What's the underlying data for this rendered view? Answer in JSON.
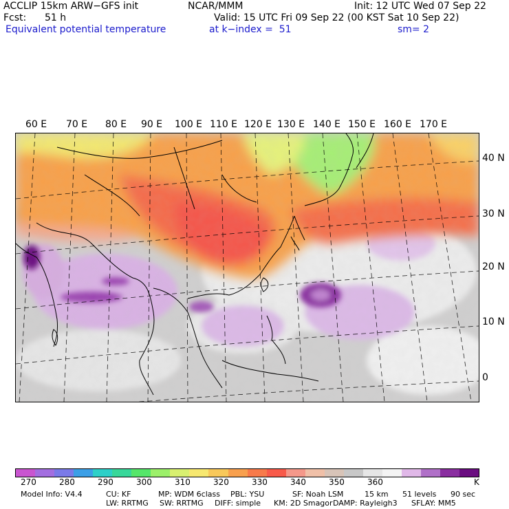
{
  "header": {
    "model": "ACCLIP 15km ARW−GFS init",
    "org": "NCAR/MMM",
    "init": "Init: 12 UTC Wed 07 Sep 22",
    "fcst_label": "Fcst:",
    "fcst_value": "51 h",
    "valid": "Valid: 15 UTC Fri 09 Sep 22 (00 KST Sat 10 Sep 22)",
    "field": "Equivalent potential temperature",
    "level": "at k−index =  51",
    "smooth": "sm= 2"
  },
  "lon_labels": [
    "60 E",
    "70 E",
    "80 E",
    "90 E",
    "100 E",
    "110 E",
    "120 E",
    "130 E",
    "140 E",
    "150 E",
    "160 E",
    "170 E"
  ],
  "lat_labels": [
    "40 N",
    "30 N",
    "20 N",
    "10 N",
    "0"
  ],
  "colorbar": {
    "unit": "K",
    "tick_labels": [
      "270",
      "280",
      "290",
      "300",
      "310",
      "320",
      "330",
      "340",
      "350",
      "360"
    ],
    "colors": [
      "#c955d0",
      "#a36ee0",
      "#7a7ae8",
      "#3c9fe6",
      "#2ed0c8",
      "#38d79a",
      "#55e66a",
      "#9cf06a",
      "#d8f070",
      "#f7e870",
      "#f8c85a",
      "#f8a04e",
      "#f87a4a",
      "#f85a4a",
      "#f4988a",
      "#f0c0a8",
      "#d8c4b8",
      "#c8c8c8",
      "#e6e6e6",
      "#f4f4f4",
      "#e0b8e8",
      "#b070c8",
      "#8a2ea0",
      "#6a0c80"
    ]
  },
  "footer": {
    "line1": [
      "Model Info: V4.4",
      "CU: KF",
      "MP: WDM 6class",
      "PBL: YSU",
      "SF: Noah LSM",
      "15 km",
      "51 levels",
      "90 sec"
    ],
    "line2": [
      "LW: RRTMG",
      "SW: RRTMG",
      "DIFF: simple",
      "KM: 2D Smagor",
      "DAMP: Rayleigh3",
      "SFLAY: MM5"
    ]
  }
}
